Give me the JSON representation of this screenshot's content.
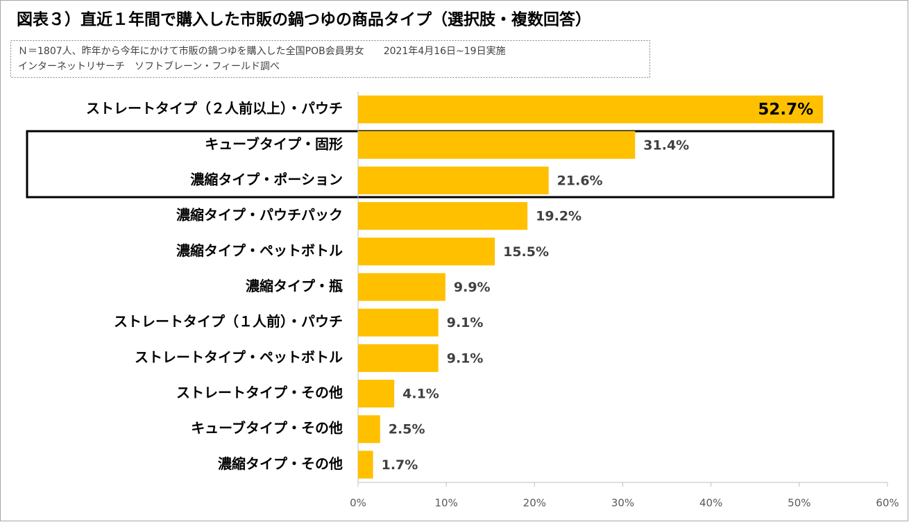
{
  "chart_data": {
    "type": "bar",
    "orientation": "horizontal",
    "title": "図表３）直近１年間で購入した市販の鍋つゆの商品タイプ（選択肢・複数回答）",
    "subtitle_lines": [
      "Ｎ＝1807人、昨年から今年にかけて市販の鍋つゆを購入した全国POB会員男女　　2021年4月16日~19日実施",
      "インターネットリサーチ　ソフトブレーン・フィールド調べ"
    ],
    "categories": [
      "ストレートタイプ（２人前以上）・パウチ",
      "キューブタイプ・固形",
      "濃縮タイプ・ポーション",
      "濃縮タイプ・パウチパック",
      "濃縮タイプ・ペットボトル",
      "濃縮タイプ・瓶",
      "ストレートタイプ（１人前）・パウチ",
      "ストレートタイプ・ペットボトル",
      "ストレートタイプ・その他",
      "キューブタイプ・その他",
      "濃縮タイプ・その他"
    ],
    "values": [
      52.7,
      31.4,
      21.6,
      19.2,
      15.5,
      9.9,
      9.1,
      9.1,
      4.1,
      2.5,
      1.7
    ],
    "value_labels": [
      "52.7%",
      "31.4%",
      "21.6%",
      "19.2%",
      "15.5%",
      "9.9%",
      "9.1%",
      "9.1%",
      "4.1%",
      "2.5%",
      "1.7%"
    ],
    "color": "#FFC000",
    "xlim": [
      0,
      60
    ],
    "xticks": [
      {
        "value": 0,
        "label": "0%"
      },
      {
        "value": 10,
        "label": "10%"
      },
      {
        "value": 20,
        "label": "20%"
      },
      {
        "value": 30,
        "label": "30%"
      },
      {
        "value": 40,
        "label": "40%"
      },
      {
        "value": 50,
        "label": "50%"
      },
      {
        "value": 60,
        "label": "60%"
      }
    ],
    "grid": false
  }
}
